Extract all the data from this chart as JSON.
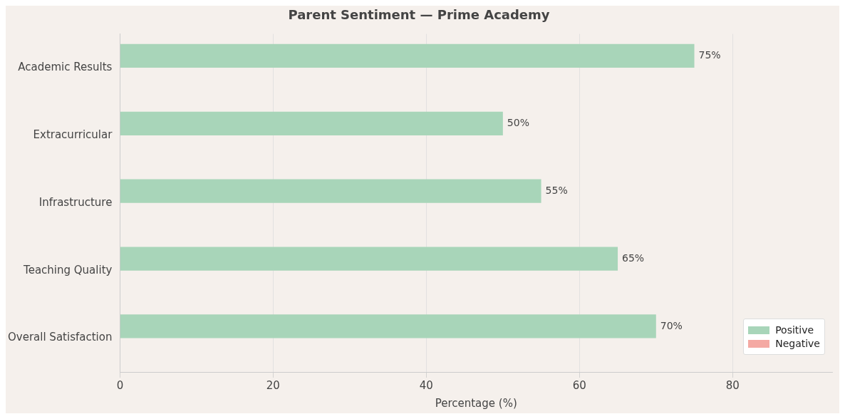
{
  "chart_data": {
    "type": "bar",
    "orientation": "horizontal",
    "title": "Parent Sentiment — Prime Academy",
    "xlabel": "Percentage (%)",
    "categories": [
      "Academic Results",
      "Extracurricular",
      "Infrastructure",
      "Teaching Quality",
      "Overall Satisfaction"
    ],
    "series": [
      {
        "name": "Positive",
        "color": "#a8d5b9",
        "values": [
          75,
          50,
          55,
          65,
          70
        ],
        "value_labels": [
          "75%",
          "50%",
          "55%",
          "65%",
          "70%"
        ]
      },
      {
        "name": "Negative",
        "color": "#f4a9a3",
        "values": [
          0,
          0,
          0,
          0,
          0
        ]
      }
    ],
    "xlim": [
      0,
      93
    ],
    "xticks": [
      0,
      20,
      40,
      60,
      80
    ],
    "grid": "x",
    "legend": "bottom right"
  }
}
